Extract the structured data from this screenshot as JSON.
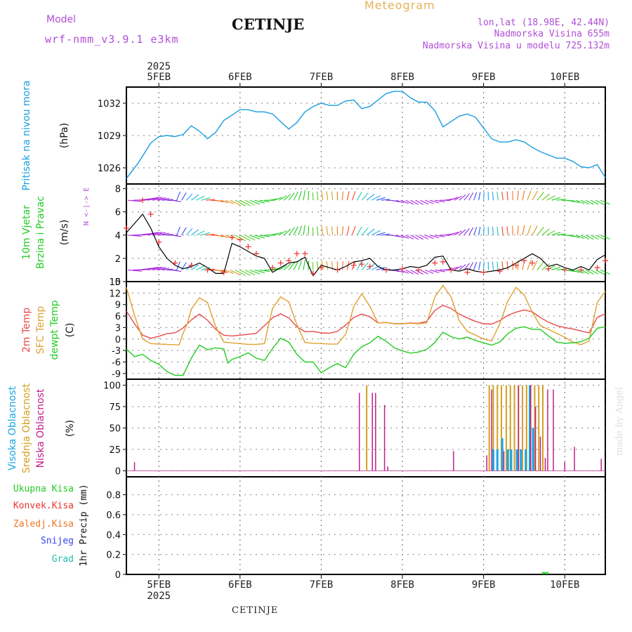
{
  "header": {
    "title": "CETINJE",
    "meteogram": "Meteogram",
    "model_label": "Model",
    "model_value": "wrf-nmm_v3.9.1  e3km",
    "lonlat": "lon,lat (18.98E, 42.44N)",
    "elevation": "Nadmorska Visina 655m",
    "model_elevation": "Nadmorska Visina u modelu 725.132m"
  },
  "footer": {
    "station": "CETINJE"
  },
  "watermark": "made by Angel",
  "colors": {
    "pressure": "#1a9ee0",
    "temp2m": "#e84a4a",
    "sfc_temp": "#e0a030",
    "dewpoint": "#22cc22",
    "high_cloud": "#1aa6e6",
    "mid_cloud": "#d4a020",
    "low_cloud": "#c0208a",
    "wind_speed": "#000000",
    "gust_marker": "#ee3333",
    "model_text": "#b04fd6"
  },
  "chart_data": {
    "type": "meteogram",
    "x_axis": {
      "unit": "day",
      "range": [
        4.6,
        10.5
      ],
      "tick_labels": [
        "5FEB",
        "6FEB",
        "7FEB",
        "8FEB",
        "9FEB",
        "10FEB"
      ],
      "tick_days": [
        5,
        6,
        7,
        8,
        9,
        10
      ],
      "year": "2025"
    },
    "panels": [
      {
        "id": "pressure",
        "ylabel_lines": [
          "Pritisak na nivou mora"
        ],
        "unit": "(hPa)",
        "ylim": [
          1024.5,
          1033.5
        ],
        "yticks": [
          1026,
          1029,
          1032
        ],
        "series": [
          {
            "name": "Pritisak na nivou mora",
            "x": [
              4.6,
              4.75,
              4.9,
              5.0,
              5.1,
              5.2,
              5.3,
              5.4,
              5.5,
              5.6,
              5.7,
              5.8,
              5.9,
              6.0,
              6.1,
              6.2,
              6.3,
              6.4,
              6.5,
              6.6,
              6.7,
              6.8,
              6.9,
              7.0,
              7.1,
              7.2,
              7.3,
              7.4,
              7.5,
              7.6,
              7.7,
              7.8,
              7.9,
              8.0,
              8.1,
              8.2,
              8.3,
              8.4,
              8.5,
              8.6,
              8.7,
              8.8,
              8.9,
              9.0,
              9.1,
              9.2,
              9.3,
              9.4,
              9.5,
              9.6,
              9.7,
              9.8,
              9.9,
              10.0,
              10.1,
              10.2,
              10.3,
              10.4,
              10.5
            ],
            "y": [
              1025.0,
              1026.5,
              1028.3,
              1028.9,
              1029.0,
              1028.9,
              1029.1,
              1029.9,
              1029.4,
              1028.7,
              1029.3,
              1030.4,
              1030.9,
              1031.4,
              1031.4,
              1031.2,
              1031.2,
              1031.0,
              1030.3,
              1029.6,
              1030.2,
              1031.2,
              1031.7,
              1032.0,
              1031.8,
              1031.8,
              1032.2,
              1032.3,
              1031.5,
              1031.7,
              1032.3,
              1032.9,
              1033.1,
              1033.1,
              1032.5,
              1032.1,
              1032.1,
              1031.3,
              1029.8,
              1030.3,
              1030.8,
              1031.0,
              1030.7,
              1029.7,
              1028.7,
              1028.4,
              1028.4,
              1028.6,
              1028.4,
              1027.9,
              1027.5,
              1027.2,
              1026.9,
              1026.9,
              1026.6,
              1026.1,
              1026.0,
              1026.3,
              1025.1
            ]
          }
        ]
      },
      {
        "id": "wind",
        "ylabel_lines": [
          "10m Vjetar",
          "Brzina i Pravac"
        ],
        "unit": "(m/s)",
        "direction_legend": "N <-|-> E",
        "ylim": [
          0,
          8.4
        ],
        "yticks": [
          0,
          2,
          4,
          6,
          8
        ],
        "barb_levels": [
          1,
          4,
          7
        ],
        "series": [
          {
            "name": "Brzina",
            "x": [
              4.6,
              4.8,
              4.9,
              5.0,
              5.1,
              5.2,
              5.3,
              5.4,
              5.5,
              5.6,
              5.7,
              5.8,
              5.85,
              5.9,
              6.0,
              6.1,
              6.2,
              6.3,
              6.4,
              6.5,
              6.6,
              6.7,
              6.8,
              6.9,
              7.0,
              7.1,
              7.2,
              7.3,
              7.4,
              7.5,
              7.6,
              7.7,
              7.8,
              7.9,
              8.0,
              8.1,
              8.2,
              8.3,
              8.4,
              8.5,
              8.6,
              8.7,
              8.8,
              8.9,
              9.0,
              9.1,
              9.2,
              9.3,
              9.4,
              9.5,
              9.6,
              9.7,
              9.8,
              9.9,
              10.0,
              10.1,
              10.2,
              10.3,
              10.4,
              10.5
            ],
            "y": [
              4.2,
              5.8,
              4.6,
              3.0,
              2.0,
              1.4,
              1.1,
              1.3,
              1.6,
              1.2,
              0.7,
              0.7,
              2.0,
              3.3,
              3.0,
              2.6,
              2.2,
              2.0,
              0.8,
              1.2,
              1.6,
              1.7,
              2.1,
              0.5,
              1.4,
              1.2,
              1.0,
              1.3,
              1.7,
              1.8,
              2.0,
              1.3,
              1.0,
              1.0,
              1.1,
              1.3,
              1.2,
              1.4,
              2.1,
              2.2,
              1.0,
              0.9,
              1.1,
              0.9,
              0.8,
              0.9,
              1.0,
              1.2,
              1.6,
              2.0,
              2.4,
              2.0,
              1.3,
              1.5,
              1.2,
              1.0,
              1.3,
              1.0,
              1.9,
              2.3
            ]
          },
          {
            "name": "Udari",
            "x": [
              4.6,
              4.8,
              4.9,
              5.0,
              5.2,
              5.4,
              5.6,
              5.8,
              5.9,
              6.0,
              6.1,
              6.2,
              6.4,
              6.5,
              6.6,
              6.7,
              6.8,
              6.9,
              7.0,
              7.2,
              7.4,
              7.5,
              7.6,
              7.8,
              8.0,
              8.2,
              8.4,
              8.5,
              8.6,
              8.8,
              9.0,
              9.2,
              9.4,
              9.5,
              9.6,
              9.8,
              10.0,
              10.2,
              10.4,
              10.5
            ],
            "y": [
              4.6,
              7.0,
              5.8,
              3.4,
              1.6,
              1.4,
              1.0,
              0.8,
              3.8,
              3.6,
              3.0,
              2.4,
              1.2,
              1.6,
              1.8,
              2.4,
              2.4,
              0.7,
              1.2,
              1.0,
              1.4,
              1.5,
              1.3,
              1.0,
              1.1,
              1.0,
              1.6,
              1.7,
              1.0,
              0.8,
              0.8,
              0.9,
              1.4,
              1.8,
              1.6,
              1.1,
              1.0,
              1.0,
              1.2,
              1.8
            ]
          }
        ]
      },
      {
        "id": "temperature",
        "ylabel_lines": [
          "2m Temp",
          "SFC Temp",
          "dewpt Temp"
        ],
        "unit": "(C)",
        "ylim": [
          -10.5,
          15
        ],
        "yticks": [
          -9,
          -6,
          -3,
          0,
          3,
          6,
          9,
          12,
          15
        ],
        "series": [
          {
            "name": "2m Temp",
            "x": [
              4.6,
              4.7,
              4.8,
              4.9,
              5.0,
              5.1,
              5.2,
              5.3,
              5.4,
              5.5,
              5.6,
              5.7,
              5.8,
              5.9,
              6.0,
              6.1,
              6.2,
              6.3,
              6.4,
              6.5,
              6.6,
              6.7,
              6.8,
              6.9,
              7.0,
              7.1,
              7.2,
              7.3,
              7.4,
              7.5,
              7.6,
              7.7,
              7.8,
              7.9,
              8.0,
              8.1,
              8.2,
              8.3,
              8.4,
              8.5,
              8.6,
              8.7,
              8.8,
              8.9,
              9.0,
              9.1,
              9.2,
              9.3,
              9.4,
              9.5,
              9.6,
              9.7,
              9.8,
              9.9,
              10.0,
              10.1,
              10.2,
              10.3,
              10.4,
              10.5
            ],
            "y": [
              7.3,
              4.0,
              1.0,
              0.2,
              0.7,
              1.4,
              1.6,
              2.9,
              5.0,
              6.5,
              4.9,
              2.5,
              1.0,
              0.8,
              1.0,
              1.2,
              1.5,
              3.5,
              5.5,
              6.6,
              5.5,
              3.2,
              1.9,
              2.0,
              1.6,
              1.5,
              2.0,
              3.6,
              5.6,
              6.5,
              5.8,
              4.2,
              4.3,
              4.0,
              4.0,
              4.2,
              4.1,
              4.6,
              7.5,
              8.8,
              8.0,
              6.5,
              5.5,
              4.6,
              4.0,
              3.9,
              4.8,
              6.2,
              7.0,
              7.6,
              7.1,
              5.6,
              4.4,
              3.5,
              3.0,
              2.6,
              2.1,
              1.6,
              5.6,
              6.6
            ]
          },
          {
            "name": "SFC Temp",
            "x": [
              4.6,
              4.7,
              4.8,
              4.9,
              5.0,
              5.1,
              5.2,
              5.25,
              5.3,
              5.35,
              5.4,
              5.5,
              5.6,
              5.7,
              5.8,
              5.9,
              6.0,
              6.1,
              6.2,
              6.3,
              6.35,
              6.4,
              6.5,
              6.6,
              6.7,
              6.8,
              6.9,
              7.0,
              7.1,
              7.2,
              7.3,
              7.35,
              7.4,
              7.5,
              7.6,
              7.7,
              7.8,
              7.9,
              8.0,
              8.1,
              8.2,
              8.3,
              8.4,
              8.5,
              8.6,
              8.7,
              8.8,
              8.9,
              9.0,
              9.1,
              9.2,
              9.3,
              9.4,
              9.5,
              9.6,
              9.7,
              9.8,
              9.9,
              10.0,
              10.1,
              10.2,
              10.3,
              10.4,
              10.5
            ],
            "y": [
              13.5,
              6.2,
              0.0,
              -1.2,
              -1.3,
              -1.4,
              -1.5,
              -1.5,
              1.6,
              4.0,
              7.8,
              10.8,
              9.5,
              3.2,
              -0.8,
              -1.0,
              -1.2,
              -1.4,
              -1.4,
              -1.2,
              3.5,
              8.0,
              11.0,
              9.7,
              3.8,
              -0.9,
              -1.1,
              -1.2,
              -1.3,
              -1.3,
              1.2,
              4.5,
              8.5,
              11.8,
              8.5,
              4.2,
              4.3,
              4.0,
              4.0,
              4.1,
              4.0,
              4.2,
              11.0,
              14.0,
              11.0,
              4.8,
              2.0,
              1.0,
              0.0,
              -0.5,
              4.0,
              10.0,
              13.5,
              11.5,
              7.0,
              3.5,
              2.5,
              1.5,
              0.5,
              -0.8,
              -1.5,
              -0.5,
              9.5,
              12.5
            ]
          },
          {
            "name": "dewpt Temp",
            "x": [
              4.6,
              4.7,
              4.8,
              4.9,
              5.0,
              5.1,
              5.2,
              5.3,
              5.4,
              5.5,
              5.6,
              5.7,
              5.8,
              5.85,
              5.9,
              6.0,
              6.1,
              6.2,
              6.3,
              6.4,
              6.5,
              6.6,
              6.7,
              6.8,
              6.9,
              7.0,
              7.1,
              7.2,
              7.3,
              7.4,
              7.5,
              7.6,
              7.7,
              7.8,
              7.9,
              8.0,
              8.1,
              8.2,
              8.3,
              8.4,
              8.5,
              8.6,
              8.7,
              8.8,
              8.9,
              9.0,
              9.1,
              9.2,
              9.3,
              9.4,
              9.5,
              9.6,
              9.7,
              9.8,
              9.9,
              10.0,
              10.1,
              10.2,
              10.3,
              10.4,
              10.5
            ],
            "y": [
              -2.6,
              -4.6,
              -4.0,
              -5.6,
              -6.6,
              -8.5,
              -9.5,
              -9.5,
              -5.0,
              -1.6,
              -2.8,
              -2.3,
              -2.6,
              -6.3,
              -5.3,
              -4.6,
              -3.6,
              -5.0,
              -5.6,
              -2.5,
              0.2,
              -0.8,
              -4.0,
              -6.0,
              -6.0,
              -8.8,
              -7.5,
              -6.4,
              -7.5,
              -4.0,
              -2.0,
              -1.0,
              0.7,
              -0.6,
              -2.3,
              -3.1,
              -3.7,
              -3.4,
              -2.7,
              -0.9,
              1.8,
              0.6,
              0.0,
              0.5,
              -0.4,
              -1.0,
              -1.6,
              -0.8,
              1.4,
              2.8,
              3.2,
              2.5,
              2.5,
              0.8,
              -0.8,
              -1.1,
              -1.0,
              -0.7,
              0.2,
              2.8,
              3.2
            ]
          }
        ]
      },
      {
        "id": "clouds",
        "ylabel_lines": [
          "Visoka Oblacnost",
          "Srednja Oblacnost",
          "Niska Oblacnost"
        ],
        "unit": "(%)",
        "ylim": [
          -7,
          107
        ],
        "yticks": [
          0,
          25,
          50,
          75,
          100
        ],
        "series": [
          {
            "name": "Visoka Oblacnost",
            "x": [
              9.12,
              9.17,
              9.23,
              9.3,
              9.34,
              9.41,
              9.46,
              9.52,
              9.57,
              9.61
            ],
            "y": [
              25,
              25,
              38,
              25,
              25,
              25,
              25,
              25,
              100,
              50
            ]
          },
          {
            "name": "Srednja Oblacnost",
            "x": [
              7.56,
              9.07,
              9.12,
              9.17,
              9.22,
              9.28,
              9.33,
              9.38,
              9.43,
              9.48,
              9.53,
              9.58,
              9.63,
              9.68,
              9.73
            ],
            "y": [
              100,
              100,
              100,
              100,
              100,
              100,
              100,
              100,
              100,
              100,
              100,
              100,
              100,
              100,
              100
            ]
          },
          {
            "name": "Niska Oblacnost",
            "x": [
              4.7,
              7.47,
              7.63,
              7.67,
              7.78,
              7.82,
              8.63,
              9.04,
              9.1,
              9.25,
              9.43,
              9.58,
              9.64,
              9.7,
              9.76,
              9.79,
              9.86,
              10.0,
              10.12,
              10.45
            ],
            "y": [
              10,
              91,
              91,
              91,
              77,
              5,
              23,
              18,
              95,
              23,
              100,
              100,
              75,
              40,
              15,
              95,
              95,
              10,
              28,
              14
            ]
          }
        ]
      },
      {
        "id": "precip",
        "ylabel_lines": [
          "Ukupna Kisa",
          "Konvek.Kisa",
          "Zaledj.Kisa",
          "Snijeg",
          "Grad"
        ],
        "unit": "1hr Precip (mm)",
        "ylim": [
          0,
          0.98
        ],
        "yticks": [
          0,
          0.2,
          0.4,
          0.6,
          0.8
        ],
        "series": [
          {
            "name": "Ukupna Kisa",
            "x": [
              9.73,
              9.75,
              9.77,
              9.79
            ],
            "y": [
              0.01,
              0.01,
              0.01,
              0.01
            ]
          },
          {
            "name": "Konvek.Kisa",
            "x": [],
            "y": []
          },
          {
            "name": "Zaledj.Kisa",
            "x": [],
            "y": []
          },
          {
            "name": "Snijeg",
            "x": [],
            "y": []
          },
          {
            "name": "Grad",
            "x": [],
            "y": []
          }
        ]
      }
    ]
  }
}
